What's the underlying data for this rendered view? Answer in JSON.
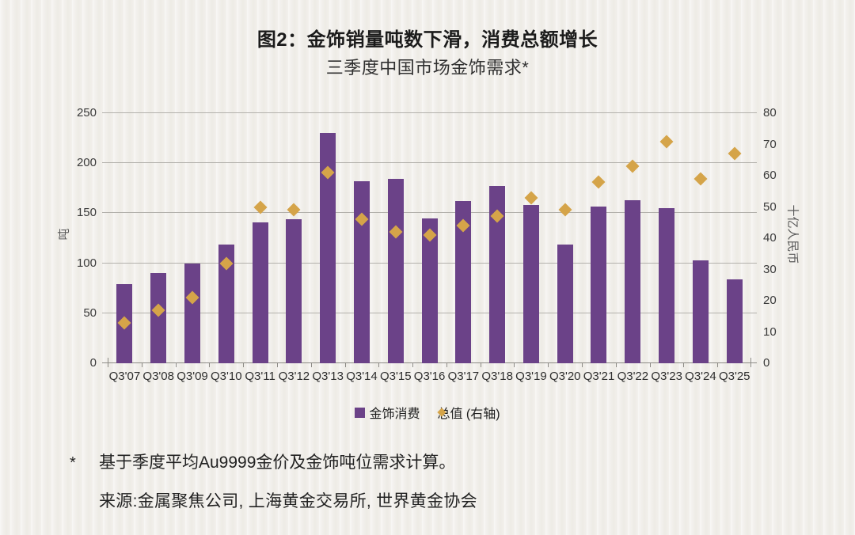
{
  "title": "图2：金饰销量吨数下滑，消费总额增长",
  "subtitle": "三季度中国市场金饰需求*",
  "chart_data": {
    "type": "bar",
    "title": "图2：金饰销量吨数下滑，消费总额增长",
    "subtitle": "三季度中国市场金饰需求*",
    "categories": [
      "Q3'07",
      "Q3'08",
      "Q3'09",
      "Q3'10",
      "Q3'11",
      "Q3'12",
      "Q3'13",
      "Q3'14",
      "Q3'15",
      "Q3'16",
      "Q3'17",
      "Q3'18",
      "Q3'19",
      "Q3'20",
      "Q3'21",
      "Q3'22",
      "Q3'23",
      "Q3'24",
      "Q3'25"
    ],
    "series": [
      {
        "name": "金饰消费",
        "type": "bar",
        "axis": "left",
        "unit": "吨",
        "color": "#6B4288",
        "values": [
          79,
          90,
          100,
          119,
          141,
          144,
          230,
          182,
          184,
          145,
          162,
          177,
          158,
          119,
          157,
          163,
          155,
          103,
          84
        ]
      },
      {
        "name": "总值 (右轴)",
        "type": "scatter",
        "marker": "diamond",
        "axis": "right",
        "unit": "十亿人民币",
        "color": "#D5A449",
        "values": [
          13,
          17,
          21,
          32,
          50,
          49,
          61,
          46,
          42,
          41,
          44,
          47,
          53,
          49,
          58,
          63,
          71,
          59,
          67
        ]
      }
    ],
    "left_axis": {
      "label": "吨",
      "min": 0,
      "max": 250,
      "ticks": [
        0,
        50,
        100,
        150,
        200,
        250
      ]
    },
    "right_axis": {
      "label": "十亿人民币",
      "min": 0,
      "max": 80,
      "ticks": [
        0,
        10,
        20,
        30,
        40,
        50,
        60,
        70,
        80
      ]
    },
    "legend": [
      {
        "label": "金饰消费",
        "marker": "square",
        "color": "#6B4288"
      },
      {
        "label": "总值 (右轴)",
        "marker": "diamond",
        "color": "#D5A449"
      }
    ],
    "grid": "horizontal",
    "legend_position": "bottom"
  },
  "footnote": {
    "marker": "*",
    "text": "基于季度平均Au9999金价及金饰吨位需求计算。",
    "source": "来源:金属聚焦公司, 上海黄金交易所, 世界黄金协会"
  }
}
